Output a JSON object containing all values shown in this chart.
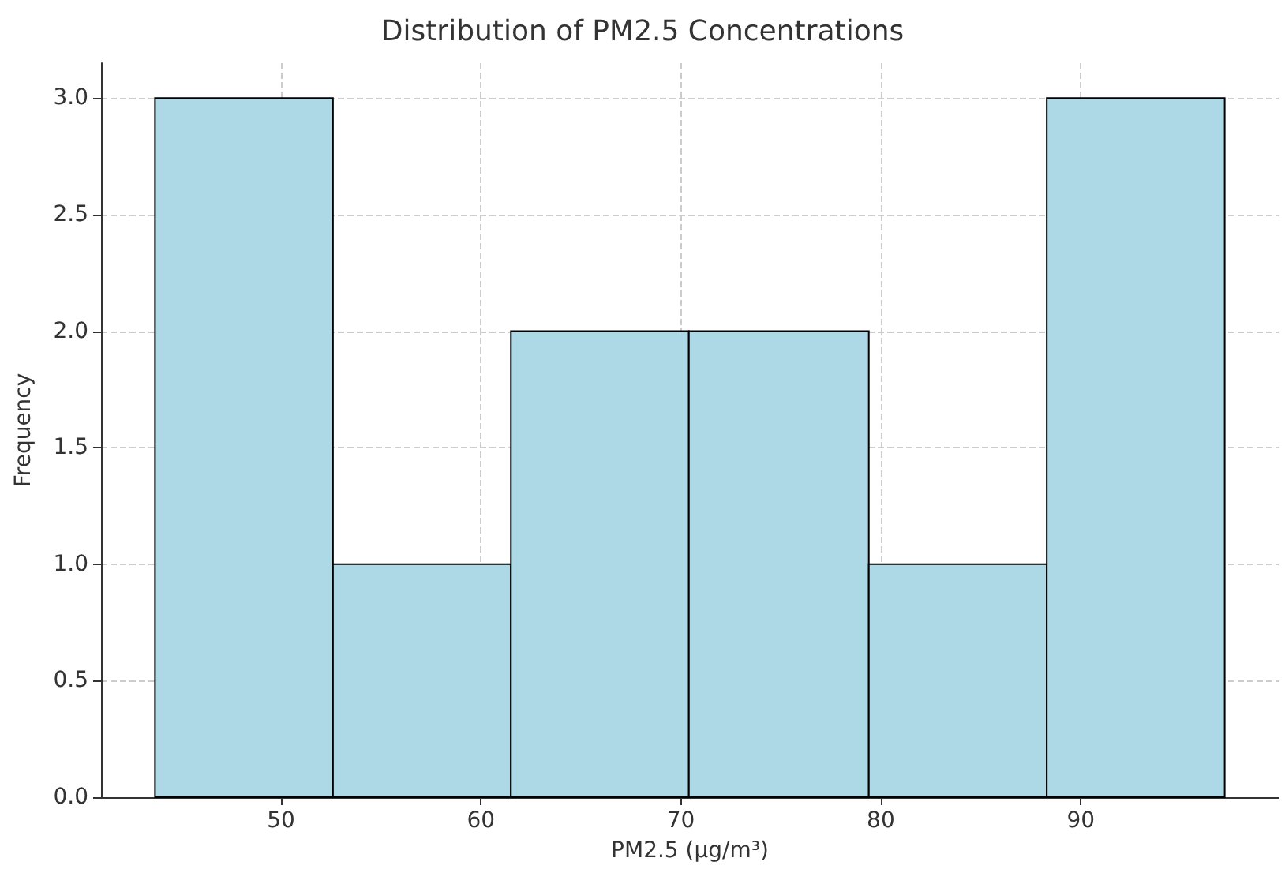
{
  "chart_data": {
    "type": "histogram",
    "title": "Distribution of PM2.5 Concentrations",
    "xlabel": "PM2.5 (µg/m³)",
    "ylabel": "Frequency",
    "bins": [
      43.7,
      52.6,
      61.5,
      70.4,
      79.4,
      88.3,
      97.2
    ],
    "values": [
      3,
      1,
      2,
      2,
      1,
      3
    ],
    "color": "#add8e6",
    "xlim": [
      41,
      99.9
    ],
    "xticks": [
      50,
      60,
      70,
      80,
      90
    ],
    "ylim": [
      0,
      3.15
    ],
    "yticks": [
      {
        "value": 0,
        "label": "0.0"
      },
      {
        "value": 0.5,
        "label": "0.5"
      },
      {
        "value": 1,
        "label": "1.0"
      },
      {
        "value": 1.5,
        "label": "1.5"
      },
      {
        "value": 2,
        "label": "2.0"
      },
      {
        "value": 2.5,
        "label": "2.5"
      },
      {
        "value": 3,
        "label": "3.0"
      }
    ],
    "grid": true
  }
}
